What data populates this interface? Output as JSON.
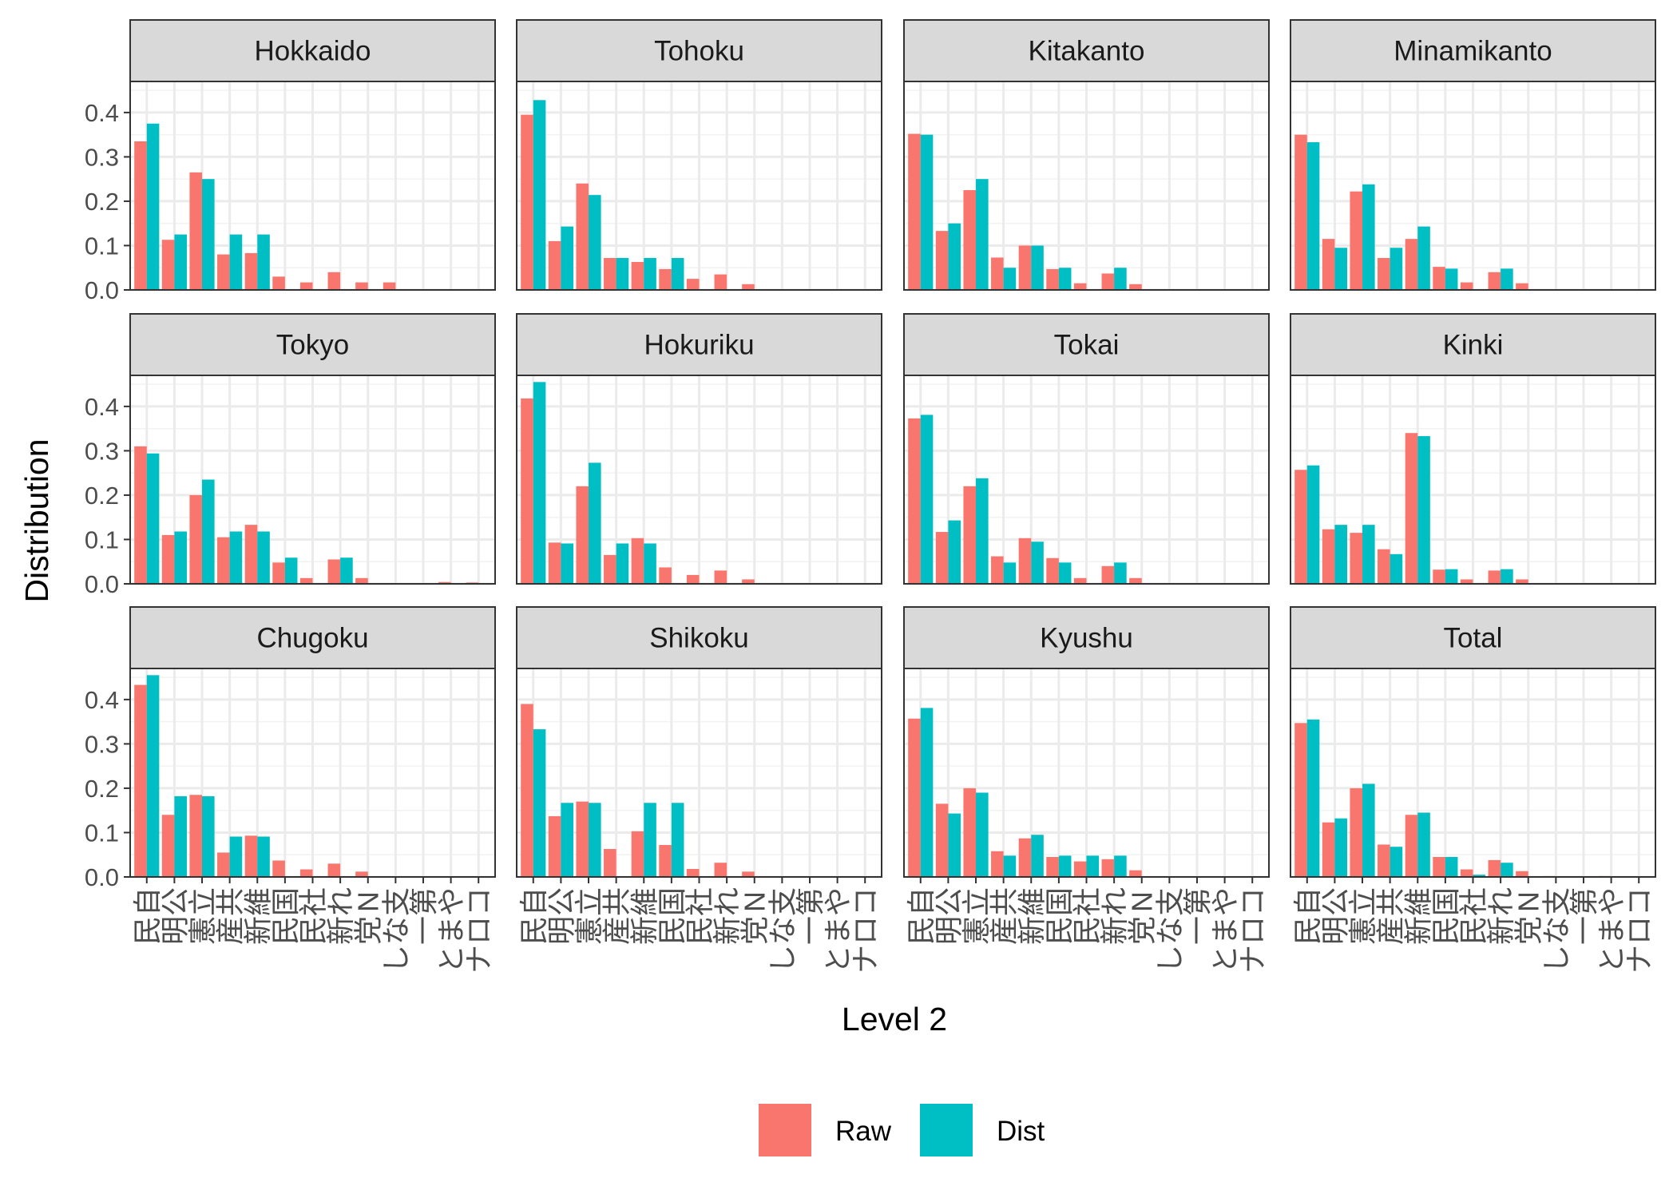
{
  "chart_data": {
    "type": "bar",
    "layout": "facet_wrap 3x4",
    "xlabel": "Level 2",
    "ylabel": "Distribution",
    "ylim": [
      0,
      0.47
    ],
    "yticks": [
      "0.0",
      "0.1",
      "0.2",
      "0.3",
      "0.4"
    ],
    "ytick_values": [
      0,
      0.1,
      0.2,
      0.3,
      0.4
    ],
    "grid": true,
    "legend_position": "bottom",
    "categories": [
      "自民",
      "公明",
      "立憲",
      "共産",
      "維新",
      "国民",
      "社民",
      "れ新",
      "N党",
      "支なし",
      "第一",
      "やまと",
      "コロナ"
    ],
    "series": [
      {
        "name": "Raw",
        "color": "#F8766D"
      },
      {
        "name": "Dist",
        "color": "#00BFC4"
      }
    ],
    "facets": [
      {
        "name": "Hokkaido",
        "raw": [
          0.335,
          0.113,
          0.265,
          0.08,
          0.083,
          0.03,
          0.017,
          0.04,
          0.017,
          0.017,
          0,
          0,
          0
        ],
        "dist": [
          0.375,
          0.125,
          0.25,
          0.125,
          0.125,
          0,
          0,
          0,
          0,
          0,
          0,
          0,
          0
        ]
      },
      {
        "name": "Tohoku",
        "raw": [
          0.395,
          0.11,
          0.24,
          0.072,
          0.063,
          0.047,
          0.025,
          0.035,
          0.013,
          0,
          0,
          0,
          0
        ],
        "dist": [
          0.428,
          0.143,
          0.214,
          0.072,
          0.072,
          0.072,
          0,
          0,
          0,
          0,
          0,
          0,
          0
        ]
      },
      {
        "name": "Kitakanto",
        "raw": [
          0.352,
          0.133,
          0.225,
          0.073,
          0.1,
          0.047,
          0.015,
          0.037,
          0.013,
          0,
          0,
          0,
          0
        ],
        "dist": [
          0.35,
          0.15,
          0.25,
          0.05,
          0.1,
          0.05,
          0,
          0.05,
          0,
          0,
          0,
          0,
          0
        ]
      },
      {
        "name": "Minamikanto",
        "raw": [
          0.35,
          0.115,
          0.222,
          0.072,
          0.115,
          0.052,
          0.017,
          0.04,
          0.015,
          0,
          0,
          0,
          0
        ],
        "dist": [
          0.333,
          0.095,
          0.238,
          0.095,
          0.143,
          0.048,
          0,
          0.048,
          0,
          0,
          0,
          0,
          0
        ]
      },
      {
        "name": "Tokyo",
        "raw": [
          0.31,
          0.11,
          0.2,
          0.105,
          0.133,
          0.048,
          0.013,
          0.055,
          0.013,
          0,
          0,
          0.004,
          0.003
        ],
        "dist": [
          0.294,
          0.118,
          0.235,
          0.118,
          0.118,
          0.059,
          0,
          0.059,
          0,
          0,
          0,
          0,
          0
        ]
      },
      {
        "name": "Hokuriku",
        "raw": [
          0.418,
          0.093,
          0.22,
          0.065,
          0.103,
          0.037,
          0.02,
          0.03,
          0.01,
          0,
          0,
          0,
          0
        ],
        "dist": [
          0.455,
          0.091,
          0.273,
          0.091,
          0.091,
          0,
          0,
          0,
          0,
          0,
          0,
          0,
          0
        ]
      },
      {
        "name": "Tokai",
        "raw": [
          0.373,
          0.117,
          0.22,
          0.062,
          0.103,
          0.058,
          0.013,
          0.04,
          0.013,
          0,
          0,
          0,
          0
        ],
        "dist": [
          0.381,
          0.143,
          0.238,
          0.048,
          0.095,
          0.048,
          0,
          0.048,
          0,
          0,
          0,
          0,
          0
        ]
      },
      {
        "name": "Kinki",
        "raw": [
          0.257,
          0.123,
          0.115,
          0.078,
          0.34,
          0.032,
          0.01,
          0.03,
          0.01,
          0,
          0,
          0,
          0
        ],
        "dist": [
          0.267,
          0.133,
          0.133,
          0.067,
          0.333,
          0.033,
          0,
          0.033,
          0,
          0,
          0,
          0,
          0
        ]
      },
      {
        "name": "Chugoku",
        "raw": [
          0.433,
          0.14,
          0.185,
          0.055,
          0.093,
          0.037,
          0.017,
          0.03,
          0.012,
          0,
          0,
          0,
          0
        ],
        "dist": [
          0.455,
          0.182,
          0.182,
          0.091,
          0.091,
          0,
          0,
          0,
          0,
          0,
          0,
          0,
          0
        ]
      },
      {
        "name": "Shikoku",
        "raw": [
          0.39,
          0.137,
          0.17,
          0.063,
          0.103,
          0.072,
          0.018,
          0.032,
          0.012,
          0,
          0,
          0,
          0
        ],
        "dist": [
          0.333,
          0.167,
          0.167,
          0,
          0.167,
          0.167,
          0,
          0,
          0,
          0,
          0,
          0,
          0
        ]
      },
      {
        "name": "Kyushu",
        "raw": [
          0.357,
          0.165,
          0.2,
          0.058,
          0.087,
          0.045,
          0.035,
          0.04,
          0.015,
          0,
          0,
          0,
          0
        ],
        "dist": [
          0.381,
          0.143,
          0.19,
          0.048,
          0.095,
          0.048,
          0.048,
          0.048,
          0,
          0,
          0,
          0,
          0
        ]
      },
      {
        "name": "Total",
        "raw": [
          0.347,
          0.123,
          0.2,
          0.073,
          0.14,
          0.045,
          0.017,
          0.038,
          0.013,
          0.002,
          0.001,
          0.002,
          0.001
        ],
        "dist": [
          0.355,
          0.132,
          0.21,
          0.068,
          0.145,
          0.045,
          0.005,
          0.032,
          0,
          0,
          0,
          0,
          0
        ]
      }
    ]
  }
}
